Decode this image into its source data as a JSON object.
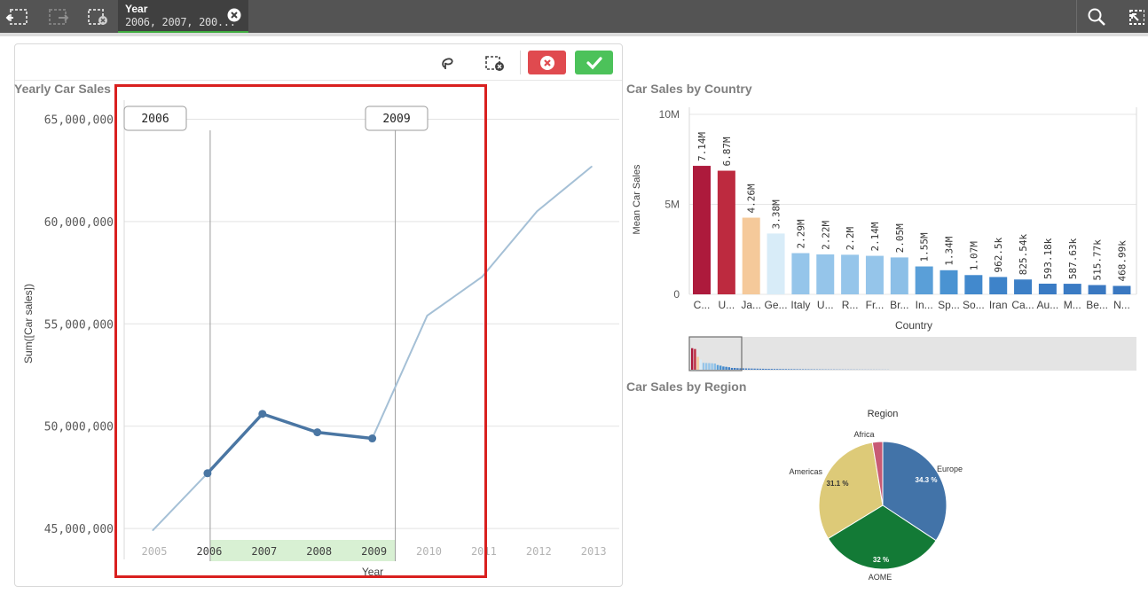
{
  "toolbar": {
    "back_icon": "step-back-icon",
    "forward_icon": "step-forward-icon",
    "clear_all_icon": "clear-selections-icon",
    "search_icon": "search-icon",
    "smart_search_icon": "selections-tool-icon"
  },
  "selection": {
    "field": "Year",
    "values": "2006, 2007, 200..."
  },
  "line_chart": {
    "title": "Yearly Car Sales",
    "range_start_label": "2006",
    "range_end_label": "2009",
    "toolbar": {
      "lasso_icon": "lasso-icon",
      "clear_icon": "clear-selection-icon",
      "cancel_icon": "close-icon",
      "confirm_icon": "check-icon"
    }
  },
  "bar_chart": {
    "title": "Car Sales by Country"
  },
  "pie_chart": {
    "title": "Car Sales by Region"
  },
  "colors": {
    "line_light": "#a5c0d6",
    "line_dark": "#4a76a3",
    "range_fill": "#d8f0d3",
    "annotation": "#d9201f"
  },
  "chart_data": [
    {
      "type": "line",
      "title": "Yearly Car Sales",
      "xlabel": "Year",
      "ylabel": "Sum([Car sales])",
      "x": [
        "2005",
        "2006",
        "2007",
        "2008",
        "2009",
        "2010",
        "2011",
        "2012",
        "2013"
      ],
      "x_labels": [
        "2005",
        "2006",
        "2007",
        "2008",
        "2009",
        "2010",
        "2011",
        "2012",
        "2013"
      ],
      "values": [
        44900000,
        47700000,
        50600000,
        49700000,
        49400000,
        55400000,
        57300000,
        60500000,
        62700000
      ],
      "selected": [
        "2006",
        "2007",
        "2008",
        "2009"
      ],
      "yticks": [
        "45,000,000",
        "50,000,000",
        "55,000,000",
        "60,000,000",
        "65,000,000"
      ],
      "ytick_values": [
        45000000,
        50000000,
        55000000,
        60000000,
        65000000
      ],
      "ylim": [
        44700000,
        65500000
      ],
      "grid": true
    },
    {
      "type": "bar",
      "title": "Car Sales by Country",
      "xlabel": "Country",
      "ylabel": "Mean Car Sales",
      "categories": [
        "C...",
        "U...",
        "Ja...",
        "Ge...",
        "Italy",
        "U...",
        "R...",
        "Fr...",
        "Br...",
        "In...",
        "Sp...",
        "So...",
        "Iran",
        "Ca...",
        "Au...",
        "M...",
        "Be...",
        "N..."
      ],
      "values": [
        7140000,
        6870000,
        4260000,
        3380000,
        2290000,
        2220000,
        2200000,
        2140000,
        2050000,
        1550000,
        1340000,
        1070000,
        962500,
        825540,
        593180,
        587630,
        515770,
        468990
      ],
      "value_labels": [
        "7.14M",
        "6.87M",
        "4.26M",
        "3.38M",
        "2.29M",
        "2.22M",
        "2.2M",
        "2.14M",
        "2.05M",
        "1.55M",
        "1.34M",
        "1.07M",
        "962.5k",
        "825.54k",
        "593.18k",
        "587.63k",
        "515.77k",
        "468.99k"
      ],
      "colors": [
        "#ad1a3c",
        "#bd2a3f",
        "#f5c99a",
        "#d8ecf8",
        "#95c5ea",
        "#95c5ea",
        "#95c5ea",
        "#95c5ea",
        "#8cbfe7",
        "#5a9fd8",
        "#4a93d2",
        "#4289cd",
        "#3e83c9",
        "#3c7fc6",
        "#3a7bc4",
        "#3a7bc4",
        "#3a78c1",
        "#3a78c1"
      ],
      "yticks": [
        "0",
        "5M",
        "10M"
      ],
      "ytick_values": [
        0,
        5000000,
        10000000
      ],
      "ylim": [
        0,
        10000000
      ],
      "grid": true
    },
    {
      "type": "pie",
      "title": "Car Sales by Region",
      "legend_title": "Region",
      "slices": [
        {
          "name": "Europe",
          "value": 34.3,
          "label": "34.3 %",
          "color": "#4273a8"
        },
        {
          "name": "AOME",
          "value": 32.0,
          "label": "32 %",
          "color": "#137a36"
        },
        {
          "name": "Americas",
          "value": 31.1,
          "label": "31.1 %",
          "color": "#ddca78"
        },
        {
          "name": "Africa",
          "value": 2.6,
          "label": "",
          "color": "#c85a74"
        }
      ]
    }
  ]
}
